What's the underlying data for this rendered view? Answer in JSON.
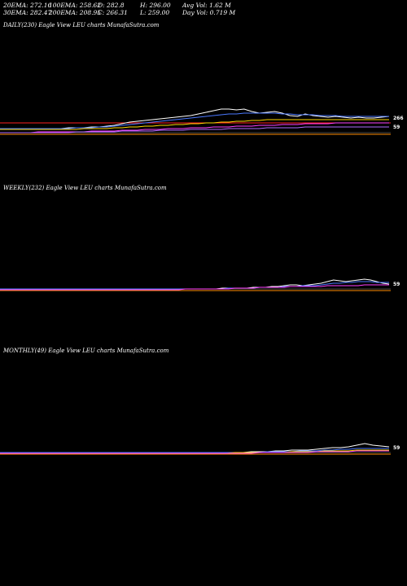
{
  "stats": {
    "row1": [
      "20EMA: 272.16",
      "100EMA: 258.62",
      "O: 282.8",
      "H: 296.00",
      "Avg Vol: 1.62  M"
    ],
    "row2": [
      "30EMA: 282.47",
      "200EMA: 208.95",
      "C: 266.31",
      "L: 259.00",
      "Day Vol: 0.719 M"
    ]
  },
  "chart_data": [
    {
      "type": "line",
      "title": "DAILY(230) Eagle   View  LEU charts MunafaSutra.com",
      "price_tags": [
        "266",
        "59"
      ],
      "series": [
        {
          "color": "#ffffff",
          "values": [
            6,
            6,
            6,
            6,
            6,
            6,
            6,
            6,
            6,
            7,
            7,
            7,
            8,
            8,
            9,
            10,
            12,
            14,
            15,
            16,
            17,
            18,
            19,
            20,
            21,
            22,
            24,
            26,
            28,
            30,
            30,
            29,
            30,
            27,
            25,
            26,
            27,
            25,
            22,
            21,
            24,
            22,
            21,
            20,
            21,
            20,
            19,
            20,
            19,
            19,
            20,
            21
          ]
        },
        {
          "color": "#4a78ff",
          "values": [
            6,
            6,
            6,
            6,
            6,
            6,
            6,
            6,
            6,
            6,
            7,
            7,
            7,
            8,
            8,
            9,
            10,
            11,
            12,
            13,
            14,
            15,
            16,
            17,
            18,
            19,
            20,
            21,
            22,
            23,
            24,
            24,
            25,
            25,
            25,
            25,
            25,
            24,
            24,
            23,
            23,
            23,
            22,
            22,
            22,
            21,
            21,
            21,
            21,
            21,
            21,
            21
          ]
        },
        {
          "color": "#ffd700",
          "values": [
            5,
            5,
            5,
            5,
            5,
            5,
            5,
            5,
            5,
            5,
            5,
            6,
            6,
            6,
            6,
            7,
            7,
            8,
            8,
            9,
            9,
            10,
            10,
            11,
            11,
            12,
            12,
            13,
            13,
            14,
            14,
            15,
            15,
            16,
            16,
            17,
            17,
            17,
            17,
            17,
            17,
            17,
            17,
            17,
            17,
            17,
            17,
            17,
            17,
            17,
            17,
            17
          ]
        },
        {
          "color": "#ff40ff",
          "values": [
            1,
            1,
            1,
            1,
            1,
            2,
            2,
            2,
            2,
            2,
            2,
            2,
            3,
            3,
            3,
            3,
            4,
            4,
            4,
            5,
            5,
            5,
            6,
            6,
            6,
            7,
            7,
            7,
            8,
            8,
            8,
            9,
            9,
            9,
            10,
            10,
            10,
            11,
            11,
            11,
            12,
            12,
            12,
            12,
            13,
            13,
            13,
            13,
            13,
            13,
            13,
            13
          ]
        },
        {
          "color": "#b06cff",
          "values": [
            1,
            1,
            1,
            1,
            1,
            1,
            1,
            1,
            1,
            1,
            2,
            2,
            2,
            2,
            2,
            2,
            3,
            3,
            3,
            3,
            3,
            4,
            4,
            4,
            4,
            5,
            5,
            5,
            5,
            5,
            6,
            6,
            6,
            6,
            6,
            7,
            7,
            7,
            7,
            7,
            8,
            8,
            8,
            8,
            8,
            8,
            8,
            8,
            8,
            8,
            8,
            8
          ]
        }
      ],
      "hlines": [
        {
          "price": 266,
          "color": "#ff2020"
        },
        {
          "price": 59,
          "color": "#ff8c00"
        }
      ]
    },
    {
      "type": "line",
      "title": "WEEKLY(232) Eagle   View  LEU charts MunafaSutra.com",
      "price_tags": [
        "59"
      ],
      "series": [
        {
          "color": "#ffffff",
          "values": [
            1,
            1,
            1,
            1,
            1,
            1,
            1,
            1,
            1,
            1,
            1,
            1,
            1,
            1,
            1,
            1,
            1,
            1,
            1,
            1,
            1,
            1,
            1,
            1,
            1,
            1,
            1,
            1,
            1,
            1,
            1,
            1,
            1,
            1,
            1,
            1,
            2,
            2,
            2,
            2,
            2,
            3,
            3,
            3,
            4,
            4,
            5,
            6,
            6,
            5,
            6,
            7,
            8,
            10,
            12,
            11,
            10,
            11,
            12,
            13,
            12,
            10,
            8,
            7
          ]
        },
        {
          "color": "#4a78ff",
          "values": [
            1,
            1,
            1,
            1,
            1,
            1,
            1,
            1,
            1,
            1,
            1,
            1,
            1,
            1,
            1,
            1,
            1,
            1,
            1,
            1,
            1,
            1,
            1,
            1,
            1,
            1,
            1,
            1,
            1,
            1,
            1,
            1,
            1,
            1,
            1,
            1,
            1,
            2,
            2,
            2,
            2,
            2,
            3,
            3,
            3,
            3,
            4,
            4,
            4,
            5,
            5,
            5,
            6,
            7,
            8,
            8,
            9,
            9,
            10,
            10,
            10,
            9,
            9,
            9
          ]
        },
        {
          "color": "#ff40ff",
          "values": [
            0,
            0,
            0,
            0,
            0,
            0,
            0,
            0,
            0,
            0,
            0,
            0,
            0,
            0,
            0,
            0,
            0,
            0,
            0,
            0,
            0,
            0,
            0,
            0,
            0,
            0,
            0,
            0,
            0,
            0,
            1,
            1,
            1,
            1,
            1,
            1,
            1,
            1,
            2,
            2,
            2,
            2,
            3,
            3,
            3,
            3,
            3,
            4,
            4,
            4,
            4,
            4,
            4,
            5,
            5,
            5,
            5,
            5,
            5,
            6,
            6,
            6,
            6,
            6
          ]
        }
      ],
      "hlines": [
        {
          "price": 59,
          "color": "#ff8c00"
        }
      ]
    },
    {
      "type": "line",
      "title": "MONTHLY(49) Eagle   View  LEU charts MunafaSutra.com",
      "price_tags": [
        "59"
      ],
      "series": [
        {
          "color": "#ffffff",
          "values": [
            1,
            1,
            1,
            1,
            1,
            1,
            1,
            1,
            1,
            1,
            1,
            1,
            1,
            1,
            1,
            1,
            1,
            1,
            1,
            1,
            1,
            1,
            1,
            1,
            1,
            1,
            1,
            1,
            1,
            1,
            1,
            2,
            2,
            2,
            3,
            3,
            4,
            4,
            4,
            5,
            6,
            7,
            7,
            8,
            10,
            12,
            10,
            9,
            8
          ]
        },
        {
          "color": "#4a78ff",
          "values": [
            1,
            1,
            1,
            1,
            1,
            1,
            1,
            1,
            1,
            1,
            1,
            1,
            1,
            1,
            1,
            1,
            1,
            1,
            1,
            1,
            1,
            1,
            1,
            1,
            1,
            1,
            1,
            1,
            1,
            1,
            1,
            1,
            1,
            2,
            2,
            2,
            2,
            3,
            3,
            3,
            4,
            4,
            5,
            5,
            6,
            6,
            6,
            6,
            6
          ]
        },
        {
          "color": "#ffd700",
          "values": [
            0,
            0,
            0,
            0,
            0,
            0,
            0,
            0,
            0,
            0,
            0,
            0,
            0,
            0,
            0,
            0,
            0,
            0,
            0,
            0,
            0,
            0,
            0,
            0,
            0,
            0,
            0,
            0,
            0,
            1,
            1,
            1,
            1,
            1,
            1,
            1,
            2,
            2,
            2,
            2,
            3,
            3,
            3,
            3,
            4,
            4,
            4,
            4,
            4
          ]
        },
        {
          "color": "#ff40ff",
          "values": [
            0,
            0,
            0,
            0,
            0,
            0,
            0,
            0,
            0,
            0,
            0,
            0,
            0,
            0,
            0,
            0,
            0,
            0,
            0,
            0,
            0,
            0,
            0,
            0,
            0,
            0,
            0,
            0,
            0,
            0,
            0,
            0,
            1,
            1,
            1,
            1,
            1,
            1,
            1,
            2,
            2,
            2,
            2,
            2,
            3,
            3,
            3,
            3,
            3
          ]
        }
      ],
      "hlines": [
        {
          "price": 59,
          "color": "#ff8c00"
        }
      ]
    }
  ]
}
